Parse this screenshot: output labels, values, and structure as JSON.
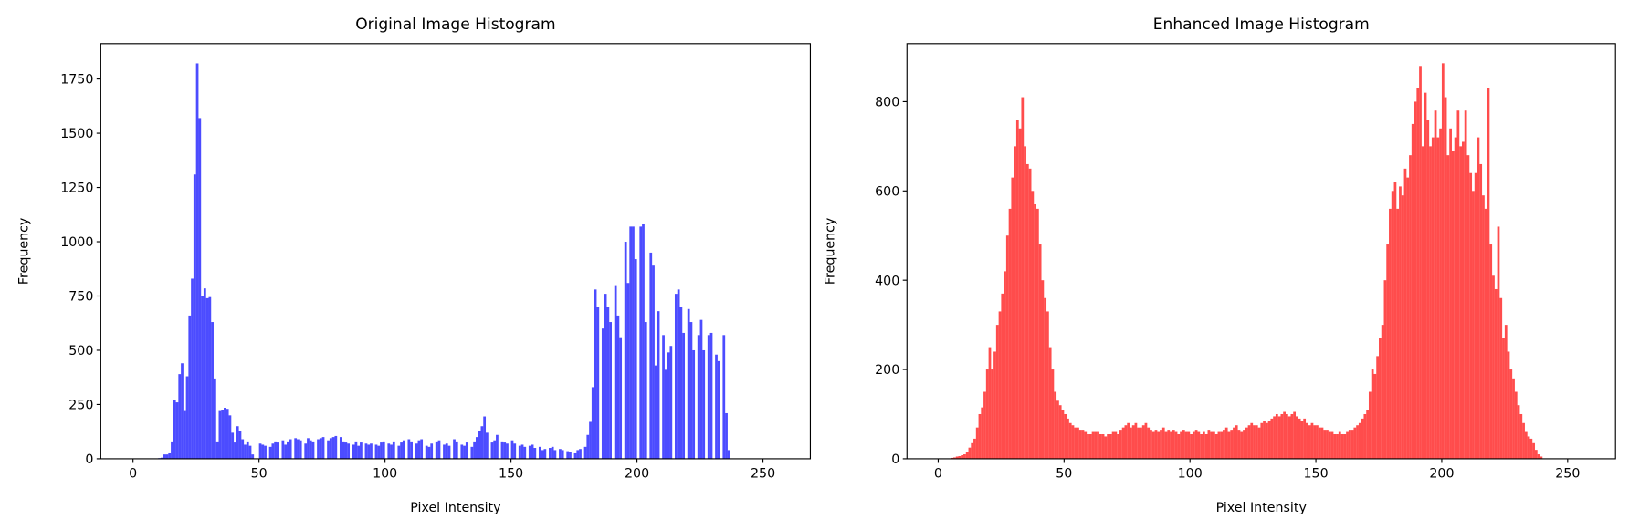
{
  "chart_data": [
    {
      "type": "histogram",
      "title": "Original Image Histogram",
      "xlabel": "Pixel Intensity",
      "ylabel": "Frequency",
      "color": "#0000ff",
      "alpha": 0.7,
      "bins": [
        0,
        1,
        2,
        3,
        4,
        5,
        6,
        7,
        8,
        9,
        10,
        11,
        12,
        13,
        14,
        15,
        16,
        17,
        18,
        19,
        20,
        21,
        22,
        23,
        24,
        25,
        26,
        27,
        28,
        29,
        30,
        31,
        32,
        33,
        34,
        35,
        36,
        37,
        38,
        39,
        40,
        41,
        42,
        43,
        44,
        45,
        46,
        47,
        48,
        49,
        50,
        51,
        52,
        53,
        54,
        55,
        56,
        57,
        58,
        59,
        60,
        61,
        62,
        63,
        64,
        65,
        66,
        67,
        68,
        69,
        70,
        71,
        72,
        73,
        74,
        75,
        76,
        77,
        78,
        79,
        80,
        81,
        82,
        83,
        84,
        85,
        86,
        87,
        88,
        89,
        90,
        91,
        92,
        93,
        94,
        95,
        96,
        97,
        98,
        99,
        100,
        101,
        102,
        103,
        104,
        105,
        106,
        107,
        108,
        109,
        110,
        111,
        112,
        113,
        114,
        115,
        116,
        117,
        118,
        119,
        120,
        121,
        122,
        123,
        124,
        125,
        126,
        127,
        128,
        129,
        130,
        131,
        132,
        133,
        134,
        135,
        136,
        137,
        138,
        139,
        140,
        141,
        142,
        143,
        144,
        145,
        146,
        147,
        148,
        149,
        150,
        151,
        152,
        153,
        154,
        155,
        156,
        157,
        158,
        159,
        160,
        161,
        162,
        163,
        164,
        165,
        166,
        167,
        168,
        169,
        170,
        171,
        172,
        173,
        174,
        175,
        176,
        177,
        178,
        179,
        180,
        181,
        182,
        183,
        184,
        185,
        186,
        187,
        188,
        189,
        190,
        191,
        192,
        193,
        194,
        195,
        196,
        197,
        198,
        199,
        200,
        201,
        202,
        203,
        204,
        205,
        206,
        207,
        208,
        209,
        210,
        211,
        212,
        213,
        214,
        215,
        216,
        217,
        218,
        219,
        220,
        221,
        222,
        223,
        224,
        225,
        226,
        227,
        228,
        229,
        230,
        231,
        232,
        233,
        234,
        235,
        236,
        237,
        238,
        239,
        240,
        241,
        242,
        243,
        244,
        245,
        246,
        247,
        248,
        249,
        250,
        251,
        252,
        253,
        254,
        255,
        256
      ],
      "values": [
        0,
        0,
        0,
        0,
        0,
        0,
        0,
        0,
        0,
        0,
        3,
        5,
        20,
        20,
        25,
        80,
        270,
        260,
        390,
        440,
        220,
        380,
        660,
        830,
        1310,
        1822,
        1570,
        750,
        785,
        740,
        745,
        630,
        370,
        80,
        220,
        225,
        235,
        230,
        200,
        120,
        75,
        150,
        130,
        90,
        65,
        80,
        60,
        20,
        0,
        0,
        70,
        65,
        60,
        0,
        55,
        70,
        80,
        75,
        0,
        85,
        65,
        80,
        90,
        0,
        95,
        90,
        85,
        0,
        70,
        95,
        85,
        80,
        0,
        90,
        95,
        100,
        0,
        85,
        95,
        100,
        105,
        0,
        100,
        80,
        75,
        70,
        0,
        65,
        80,
        60,
        75,
        0,
        70,
        65,
        70,
        0,
        65,
        60,
        75,
        80,
        0,
        70,
        65,
        80,
        0,
        60,
        75,
        85,
        0,
        90,
        80,
        0,
        70,
        85,
        90,
        0,
        60,
        55,
        70,
        0,
        80,
        85,
        0,
        65,
        70,
        60,
        0,
        90,
        80,
        0,
        65,
        60,
        75,
        0,
        55,
        80,
        100,
        130,
        150,
        195,
        120,
        0,
        75,
        85,
        110,
        0,
        80,
        75,
        70,
        0,
        85,
        70,
        0,
        60,
        65,
        55,
        0,
        60,
        65,
        50,
        0,
        55,
        40,
        45,
        0,
        50,
        55,
        40,
        0,
        45,
        40,
        0,
        35,
        30,
        0,
        25,
        40,
        45,
        0,
        55,
        110,
        170,
        330,
        780,
        700,
        0,
        600,
        760,
        700,
        630,
        0,
        800,
        660,
        560,
        0,
        1000,
        810,
        1070,
        1070,
        920,
        0,
        1070,
        1080,
        630,
        0,
        950,
        890,
        430,
        680,
        0,
        570,
        410,
        490,
        520,
        0,
        760,
        780,
        700,
        580,
        0,
        690,
        630,
        500,
        0,
        570,
        640,
        500,
        0,
        570,
        580,
        0,
        480,
        450,
        0,
        570,
        210,
        40,
        0,
        0,
        0,
        0,
        0,
        0,
        0,
        0,
        0,
        0,
        0,
        0,
        0,
        0,
        0,
        0,
        0,
        0,
        0
      ],
      "xlim": [
        -12.8,
        268.8
      ],
      "ylim": [
        0,
        1913
      ],
      "xticks": [
        0,
        50,
        100,
        150,
        200,
        250
      ],
      "yticks": [
        0,
        250,
        500,
        750,
        1000,
        1250,
        1500,
        1750
      ]
    },
    {
      "type": "histogram",
      "title": "Enhanced Image Histogram",
      "xlabel": "Pixel Intensity",
      "ylabel": "Frequency",
      "color": "#ff0000",
      "alpha": 0.7,
      "bins": [
        0,
        1,
        2,
        3,
        4,
        5,
        6,
        7,
        8,
        9,
        10,
        11,
        12,
        13,
        14,
        15,
        16,
        17,
        18,
        19,
        20,
        21,
        22,
        23,
        24,
        25,
        26,
        27,
        28,
        29,
        30,
        31,
        32,
        33,
        34,
        35,
        36,
        37,
        38,
        39,
        40,
        41,
        42,
        43,
        44,
        45,
        46,
        47,
        48,
        49,
        50,
        51,
        52,
        53,
        54,
        55,
        56,
        57,
        58,
        59,
        60,
        61,
        62,
        63,
        64,
        65,
        66,
        67,
        68,
        69,
        70,
        71,
        72,
        73,
        74,
        75,
        76,
        77,
        78,
        79,
        80,
        81,
        82,
        83,
        84,
        85,
        86,
        87,
        88,
        89,
        90,
        91,
        92,
        93,
        94,
        95,
        96,
        97,
        98,
        99,
        100,
        101,
        102,
        103,
        104,
        105,
        106,
        107,
        108,
        109,
        110,
        111,
        112,
        113,
        114,
        115,
        116,
        117,
        118,
        119,
        120,
        121,
        122,
        123,
        124,
        125,
        126,
        127,
        128,
        129,
        130,
        131,
        132,
        133,
        134,
        135,
        136,
        137,
        138,
        139,
        140,
        141,
        142,
        143,
        144,
        145,
        146,
        147,
        148,
        149,
        150,
        151,
        152,
        153,
        154,
        155,
        156,
        157,
        158,
        159,
        160,
        161,
        162,
        163,
        164,
        165,
        166,
        167,
        168,
        169,
        170,
        171,
        172,
        173,
        174,
        175,
        176,
        177,
        178,
        179,
        180,
        181,
        182,
        183,
        184,
        185,
        186,
        187,
        188,
        189,
        190,
        191,
        192,
        193,
        194,
        195,
        196,
        197,
        198,
        199,
        200,
        201,
        202,
        203,
        204,
        205,
        206,
        207,
        208,
        209,
        210,
        211,
        212,
        213,
        214,
        215,
        216,
        217,
        218,
        219,
        220,
        221,
        222,
        223,
        224,
        225,
        226,
        227,
        228,
        229,
        230,
        231,
        232,
        233,
        234,
        235,
        236,
        237,
        238,
        239,
        240,
        241,
        242,
        243,
        244,
        245,
        246,
        247,
        248,
        249,
        250,
        251,
        252,
        253,
        254,
        255,
        256
      ],
      "values": [
        0,
        0,
        0,
        0,
        0,
        2,
        3,
        5,
        6,
        8,
        10,
        15,
        25,
        35,
        45,
        70,
        100,
        115,
        150,
        200,
        250,
        200,
        240,
        300,
        330,
        370,
        420,
        500,
        560,
        630,
        700,
        760,
        740,
        810,
        700,
        660,
        650,
        600,
        570,
        560,
        480,
        400,
        360,
        330,
        250,
        200,
        150,
        130,
        120,
        110,
        100,
        90,
        80,
        75,
        70,
        70,
        65,
        65,
        60,
        55,
        55,
        60,
        60,
        60,
        55,
        55,
        50,
        55,
        55,
        60,
        60,
        55,
        65,
        70,
        75,
        80,
        70,
        75,
        80,
        70,
        70,
        75,
        80,
        70,
        65,
        60,
        65,
        60,
        65,
        70,
        60,
        65,
        60,
        65,
        60,
        55,
        60,
        65,
        60,
        60,
        55,
        60,
        65,
        60,
        55,
        60,
        55,
        65,
        60,
        60,
        55,
        60,
        60,
        65,
        70,
        60,
        65,
        70,
        75,
        65,
        60,
        65,
        70,
        75,
        80,
        75,
        75,
        70,
        80,
        85,
        80,
        85,
        90,
        95,
        100,
        95,
        100,
        105,
        100,
        95,
        100,
        105,
        95,
        90,
        85,
        90,
        80,
        75,
        80,
        75,
        75,
        70,
        70,
        65,
        65,
        60,
        60,
        55,
        55,
        60,
        55,
        55,
        60,
        65,
        65,
        70,
        75,
        80,
        90,
        100,
        110,
        150,
        200,
        190,
        230,
        270,
        300,
        400,
        480,
        560,
        600,
        620,
        560,
        610,
        590,
        650,
        630,
        680,
        750,
        800,
        830,
        880,
        700,
        820,
        760,
        700,
        720,
        780,
        720,
        740,
        886,
        810,
        680,
        740,
        690,
        720,
        780,
        700,
        710,
        780,
        680,
        640,
        600,
        640,
        720,
        660,
        590,
        560,
        830,
        480,
        410,
        380,
        520,
        360,
        270,
        300,
        240,
        200,
        180,
        150,
        120,
        100,
        80,
        60,
        50,
        45,
        35,
        20,
        10,
        5,
        0,
        0,
        0,
        0,
        0,
        0,
        0,
        0,
        0,
        0,
        0,
        0,
        0,
        0,
        0,
        0
      ],
      "xlim": [
        -12.4,
        269
      ],
      "ylim": [
        0,
        930
      ],
      "xticks": [
        0,
        50,
        100,
        150,
        200,
        250
      ],
      "yticks": [
        0,
        200,
        400,
        600,
        800
      ]
    }
  ]
}
